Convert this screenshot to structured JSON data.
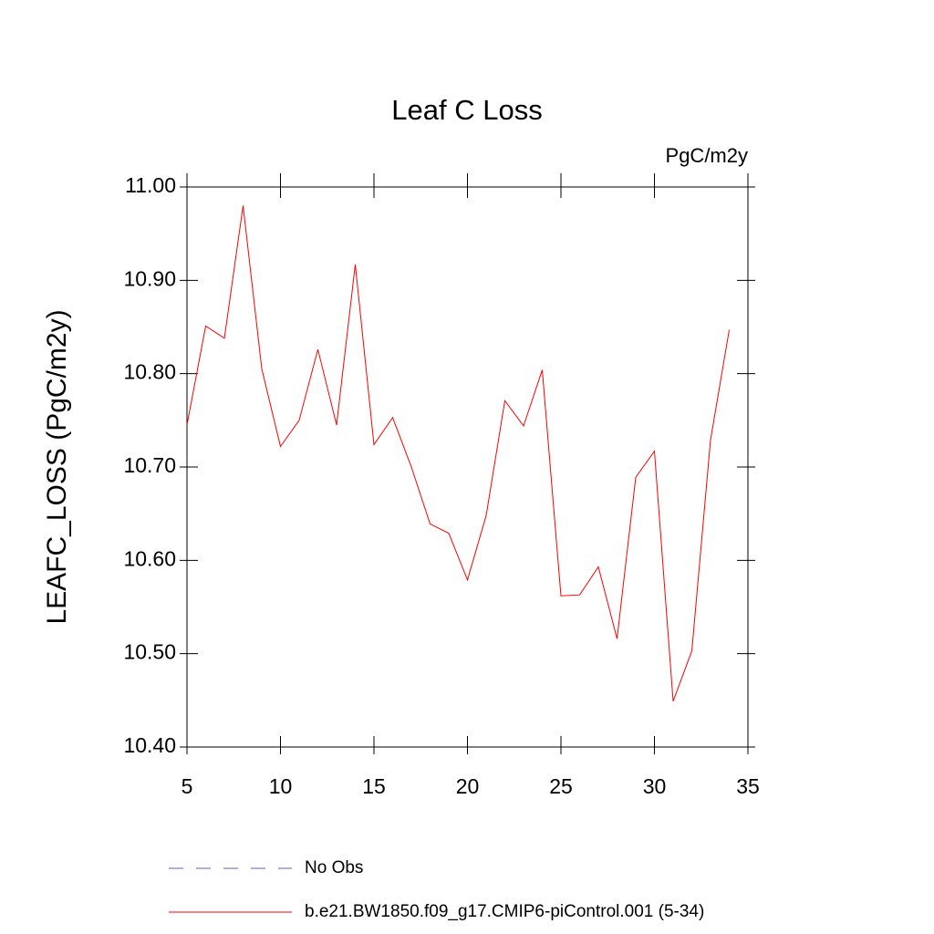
{
  "chart_data": {
    "type": "line",
    "title": "Leaf C Loss",
    "units": "PgC/m2y",
    "y_label": "LEAFC_LOSS  (PgC/m2y)",
    "x": [
      5,
      6,
      7,
      8,
      9,
      10,
      11,
      12,
      13,
      14,
      15,
      16,
      17,
      18,
      19,
      20,
      21,
      22,
      23,
      24,
      25,
      26,
      27,
      28,
      29,
      30,
      31,
      32,
      33,
      34
    ],
    "series": [
      {
        "name": "b.e21.BW1850.f09_g17.CMIP6-piControl.001 (5-34)",
        "color": "#ff0000",
        "values": [
          10.745,
          10.851,
          10.838,
          10.98,
          10.805,
          10.722,
          10.75,
          10.826,
          10.745,
          10.917,
          10.724,
          10.753,
          10.7,
          10.639,
          10.629,
          10.579,
          10.648,
          10.771,
          10.744,
          10.804,
          10.562,
          10.563,
          10.593,
          10.516,
          10.689,
          10.717,
          10.449,
          10.503,
          10.729,
          10.847
        ]
      }
    ],
    "extra_legend": [
      {
        "name": "No Obs",
        "color": "#6a5acd",
        "dashed": true
      }
    ],
    "xlim": [
      5,
      35
    ],
    "xticks": [
      5,
      10,
      15,
      20,
      25,
      30,
      35
    ],
    "ylim": [
      10.4,
      11.0
    ],
    "yticks": [
      {
        "value": 10.4,
        "label": "10.40"
      },
      {
        "value": 10.5,
        "label": "10.50"
      },
      {
        "value": 10.6,
        "label": "10.60"
      },
      {
        "value": 10.7,
        "label": "10.70"
      },
      {
        "value": 10.8,
        "label": "10.80"
      },
      {
        "value": 10.9,
        "label": "10.90"
      },
      {
        "value": 11.0,
        "label": "11.00"
      }
    ]
  }
}
